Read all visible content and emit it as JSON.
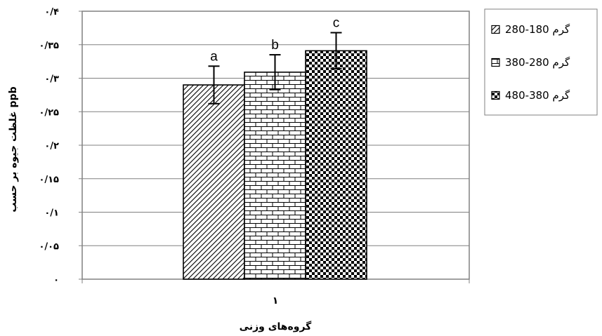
{
  "chart_data": {
    "type": "bar",
    "categories": [
      "۱"
    ],
    "series": [
      {
        "name": "گرم 180-280",
        "values": [
          0.29
        ],
        "error": [
          0.028
        ],
        "label": "a"
      },
      {
        "name": "گرم 280-380",
        "values": [
          0.309
        ],
        "error": [
          0.026
        ],
        "label": "b"
      },
      {
        "name": "گرم 380-480",
        "values": [
          0.341
        ],
        "error": [
          0.027
        ],
        "label": "c"
      }
    ],
    "ylim": [
      0,
      0.4
    ],
    "yticks": [
      0,
      0.05,
      0.1,
      0.15,
      0.2,
      0.25,
      0.3,
      0.35,
      0.4
    ],
    "ytick_labels": [
      "۰",
      "۰/۰۵",
      "۰/۱",
      "۰/۱۵",
      "۰/۲",
      "۰/۲۵",
      "۰/۳",
      "۰/۳۵",
      "۰/۴"
    ],
    "xlabel": "گروه‌های وزنی",
    "ylabel": "غلظت جیوه بر حسب ppb",
    "grid": true,
    "legend": "right",
    "patterns": [
      "diagonal-hatch",
      "brick",
      "checker"
    ]
  }
}
